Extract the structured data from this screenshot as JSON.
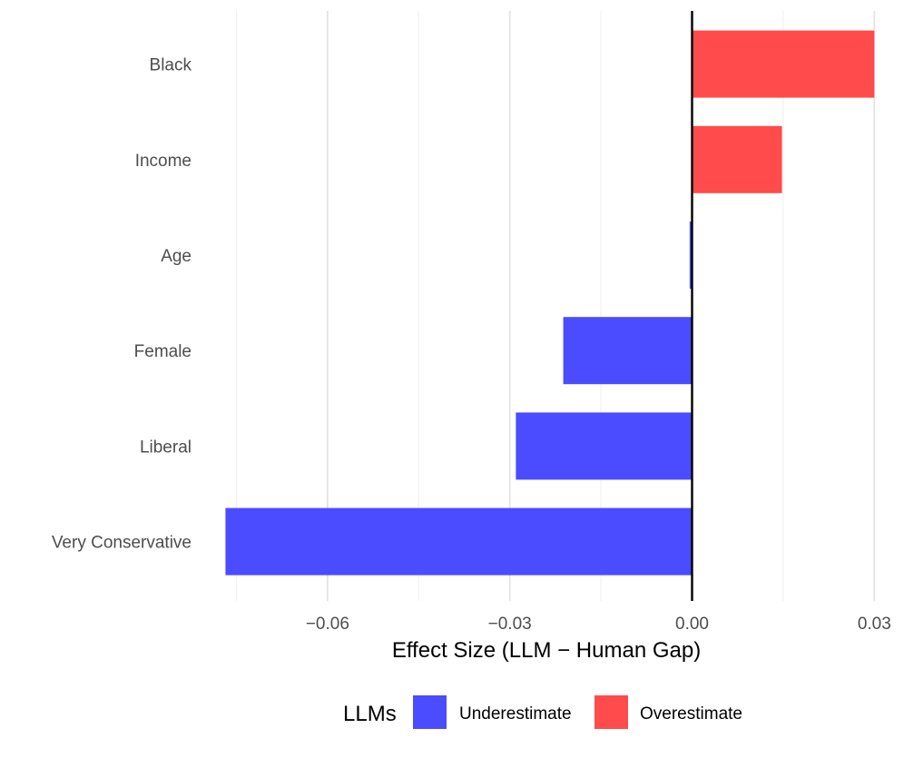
{
  "chart_data": {
    "type": "bar",
    "orientation": "horizontal",
    "categories": [
      "Black",
      "Income",
      "Age",
      "Female",
      "Liberal",
      "Very Conservative"
    ],
    "values": [
      0.03,
      0.0148,
      -0.0004,
      -0.0212,
      -0.029,
      -0.0768
    ],
    "title": "",
    "xlabel": "Effect Size (LLM − Human Gap)",
    "ylabel": "",
    "xlim": [
      -0.08,
      0.031
    ],
    "x_ticks": [
      -0.06,
      -0.03,
      0.0,
      0.03
    ],
    "x_tick_labels": [
      "−0.06",
      "−0.03",
      "0.00",
      "0.03"
    ],
    "grid": "vertical",
    "reference_line": 0,
    "legend": {
      "title": "LLMs",
      "position": "bottom",
      "items": [
        {
          "label": "Underestimate",
          "color": "#4B4BFF"
        },
        {
          "label": "Overestimate",
          "color": "#FF4B4B"
        }
      ]
    },
    "colors": {
      "negative": "#4B4BFF",
      "positive": "#FF4B4B",
      "grid_major": "#e3e3e3",
      "grid_minor": "#f1f1f1",
      "zero_line": "#000000"
    }
  }
}
